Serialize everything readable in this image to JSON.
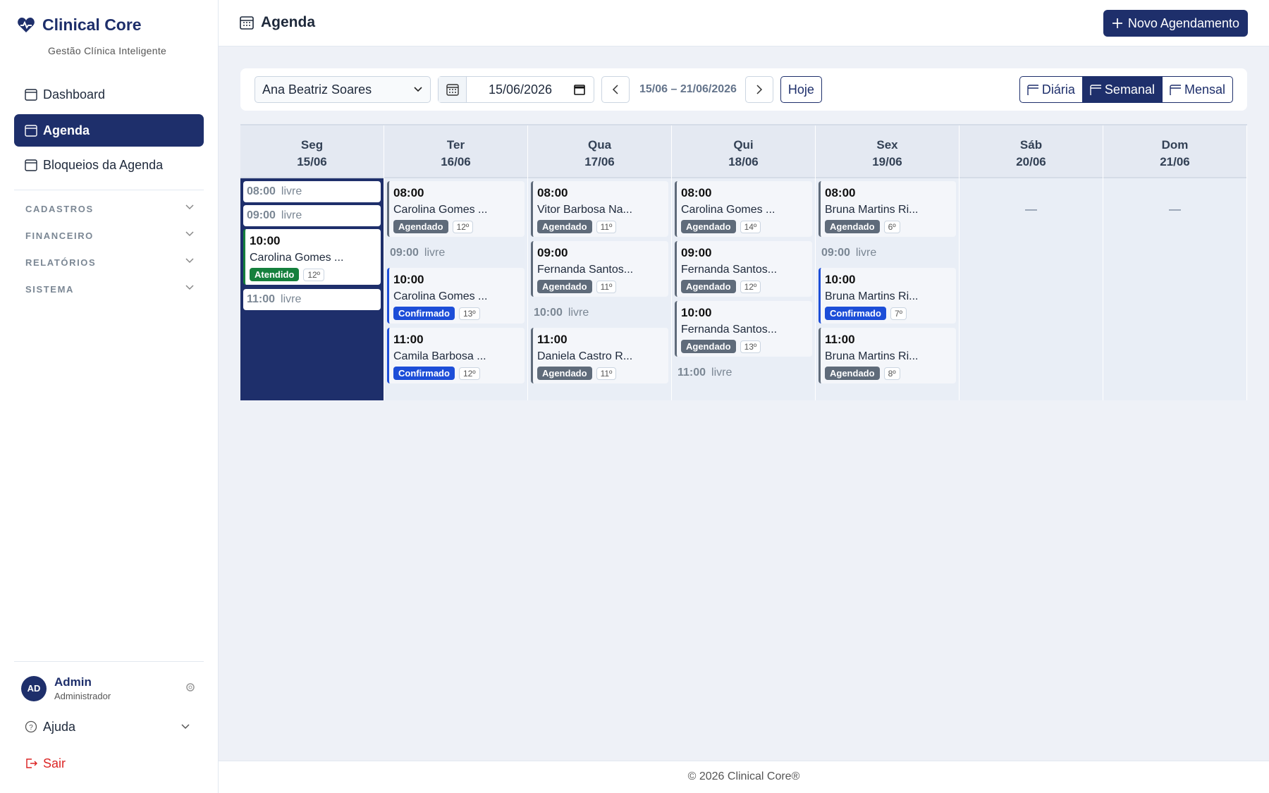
{
  "sidebar": {
    "brand": "Clinical Core",
    "tagline": "Gestão Clínica Inteligente",
    "nav": [
      "Dashboard",
      "Agenda",
      "Bloqueios da Agenda"
    ],
    "sections": [
      "CADASTROS",
      "FINANCEIRO",
      "RELATÓRIOS",
      "SISTEMA"
    ],
    "user": {
      "initials": "AD",
      "name": "Admin",
      "role": "Administrador"
    },
    "help": "Ajuda",
    "logout": "Sair"
  },
  "header": {
    "title": "Agenda",
    "button": "Novo Agendamento"
  },
  "toolbar": {
    "professional": "Ana Beatriz Soares",
    "date": "15/06/2026",
    "range": "15/06 – 21/06/2026",
    "today": "Hoje",
    "views": [
      "Diária",
      "Semanal",
      "Mensal"
    ]
  },
  "calendar": {
    "status_colors": {
      "Agendado": "#5f6b7a",
      "Confirmado": "#1d4ed8",
      "Atendido": "#15803d"
    },
    "days": [
      {
        "weekday": "Seg",
        "date": "15/06",
        "slots": [
          {
            "time": "08:00",
            "label": "livre"
          },
          {
            "time": "09:00",
            "label": "livre"
          },
          {
            "time": "10:00",
            "patient": "Carolina Gomes ...",
            "status": "Atendido",
            "order": "12º"
          },
          {
            "time": "11:00",
            "label": "livre"
          }
        ]
      },
      {
        "weekday": "Ter",
        "date": "16/06",
        "slots": [
          {
            "time": "08:00",
            "patient": "Carolina Gomes ...",
            "status": "Agendado",
            "order": "12º"
          },
          {
            "time": "09:00",
            "label": "livre"
          },
          {
            "time": "10:00",
            "patient": "Carolina Gomes ...",
            "status": "Confirmado",
            "order": "13º"
          },
          {
            "time": "11:00",
            "patient": "Camila Barbosa ...",
            "status": "Confirmado",
            "order": "12º"
          }
        ]
      },
      {
        "weekday": "Qua",
        "date": "17/06",
        "slots": [
          {
            "time": "08:00",
            "patient": "Vitor Barbosa Na...",
            "status": "Agendado",
            "order": "11º"
          },
          {
            "time": "09:00",
            "patient": "Fernanda Santos...",
            "status": "Agendado",
            "order": "11º"
          },
          {
            "time": "10:00",
            "label": "livre"
          },
          {
            "time": "11:00",
            "patient": "Daniela Castro R...",
            "status": "Agendado",
            "order": "11º"
          }
        ]
      },
      {
        "weekday": "Qui",
        "date": "18/06",
        "slots": [
          {
            "time": "08:00",
            "patient": "Carolina Gomes ...",
            "status": "Agendado",
            "order": "14º"
          },
          {
            "time": "09:00",
            "patient": "Fernanda Santos...",
            "status": "Agendado",
            "order": "12º"
          },
          {
            "time": "10:00",
            "patient": "Fernanda Santos...",
            "status": "Agendado",
            "order": "13º"
          },
          {
            "time": "11:00",
            "label": "livre"
          }
        ]
      },
      {
        "weekday": "Sex",
        "date": "19/06",
        "slots": [
          {
            "time": "08:00",
            "patient": "Bruna Martins Ri...",
            "status": "Agendado",
            "order": "6º"
          },
          {
            "time": "09:00",
            "label": "livre"
          },
          {
            "time": "10:00",
            "patient": "Bruna Martins Ri...",
            "status": "Confirmado",
            "order": "7º"
          },
          {
            "time": "11:00",
            "patient": "Bruna Martins Ri...",
            "status": "Agendado",
            "order": "8º"
          }
        ]
      },
      {
        "weekday": "Sáb",
        "date": "20/06",
        "empty": "—"
      },
      {
        "weekday": "Dom",
        "date": "21/06",
        "empty": "—"
      }
    ]
  },
  "footer": "© 2026 Clinical Core®"
}
